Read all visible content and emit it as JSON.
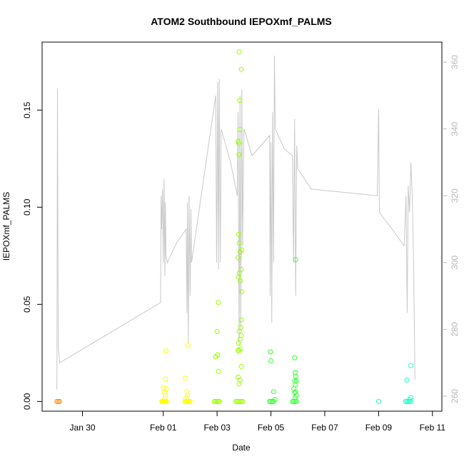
{
  "chart_data": {
    "type": "scatter",
    "title": "ATOM2 Southbound IEPOXmf_PALMS",
    "xlabel": "Date",
    "ylabel": "IEPOXmf_PALMS",
    "x_unit": "day of February 2017 (negative = late January)",
    "xlim": [
      -3.5,
      11.35
    ],
    "ylim": [
      -0.005,
      0.185
    ],
    "x_ticks": [
      {
        "value": -2,
        "label": "Jan 30"
      },
      {
        "value": 1,
        "label": "Feb 01"
      },
      {
        "value": 3,
        "label": "Feb 03"
      },
      {
        "value": 5,
        "label": "Feb 05"
      },
      {
        "value": 7,
        "label": "Feb 07"
      },
      {
        "value": 9,
        "label": "Feb 09"
      },
      {
        "value": 11,
        "label": "Feb 11"
      }
    ],
    "y_ticks": [
      {
        "value": 0.0,
        "label": "0.00"
      },
      {
        "value": 0.05,
        "label": "0.05"
      },
      {
        "value": 0.1,
        "label": "0.10"
      },
      {
        "value": 0.15,
        "label": "0.15"
      }
    ],
    "y2lim": [
      255.5,
      366
    ],
    "y2_ticks": [
      {
        "value": 260,
        "label": "260"
      },
      {
        "value": 280,
        "label": "280"
      },
      {
        "value": 300,
        "label": "300"
      },
      {
        "value": 320,
        "label": "320"
      },
      {
        "value": 340,
        "label": "340"
      },
      {
        "value": 360,
        "label": "360"
      }
    ],
    "grid": false,
    "legend": "none",
    "secondary_series": {
      "color": "#c8c8c8",
      "points": [
        [
          -2.95,
          262
        ],
        [
          -2.93,
          352
        ],
        [
          -2.9,
          275
        ],
        [
          -2.85,
          270
        ],
        [
          0.9,
          288
        ],
        [
          0.92,
          320
        ],
        [
          0.94,
          310
        ],
        [
          0.97,
          322
        ],
        [
          1.0,
          300
        ],
        [
          1.03,
          325
        ],
        [
          1.06,
          296
        ],
        [
          1.08,
          318
        ],
        [
          1.1,
          302
        ],
        [
          1.15,
          300
        ],
        [
          1.5,
          306
        ],
        [
          1.85,
          310
        ],
        [
          1.88,
          285
        ],
        [
          1.9,
          318
        ],
        [
          1.93,
          276
        ],
        [
          1.96,
          320
        ],
        [
          2.0,
          290
        ],
        [
          2.03,
          316
        ],
        [
          2.05,
          300
        ],
        [
          2.95,
          350
        ],
        [
          2.98,
          300
        ],
        [
          3.02,
          354
        ],
        [
          3.05,
          298
        ],
        [
          3.08,
          355
        ],
        [
          3.12,
          300
        ],
        [
          3.15,
          340
        ],
        [
          3.5,
          330
        ],
        [
          3.75,
          320
        ],
        [
          3.78,
          345
        ],
        [
          3.82,
          275
        ],
        [
          3.85,
          350
        ],
        [
          3.88,
          280
        ],
        [
          3.92,
          352
        ],
        [
          3.95,
          305
        ],
        [
          4.0,
          340
        ],
        [
          4.3,
          332
        ],
        [
          4.95,
          338
        ],
        [
          4.97,
          290
        ],
        [
          5.0,
          336
        ],
        [
          5.03,
          282
        ],
        [
          5.06,
          345
        ],
        [
          5.1,
          300
        ],
        [
          5.13,
          362
        ],
        [
          5.16,
          340
        ],
        [
          5.5,
          334
        ],
        [
          5.8,
          332
        ],
        [
          5.84,
          300
        ],
        [
          5.88,
          343
        ],
        [
          5.92,
          290
        ],
        [
          5.96,
          335
        ],
        [
          6.0,
          328
        ],
        [
          6.5,
          322
        ],
        [
          8.95,
          320
        ],
        [
          9.0,
          346
        ],
        [
          9.03,
          315
        ],
        [
          9.5,
          310
        ],
        [
          9.95,
          305
        ],
        [
          10.02,
          320
        ],
        [
          10.06,
          285
        ],
        [
          10.1,
          323
        ],
        [
          10.15,
          315
        ],
        [
          10.2,
          330
        ],
        [
          10.25,
          320
        ],
        [
          10.3,
          300
        ],
        [
          10.35,
          265
        ]
      ]
    },
    "series": [
      {
        "color": "#ff8c1a",
        "points": [
          [
            -2.95,
            0.0
          ],
          [
            -2.9,
            0.0
          ],
          [
            -2.85,
            0.0
          ]
        ]
      },
      {
        "color": "#ffff00",
        "points": [
          [
            0.95,
            0.0
          ],
          [
            0.98,
            0.0
          ],
          [
            1.0,
            0.0
          ],
          [
            1.02,
            0.0
          ],
          [
            1.05,
            0.0
          ],
          [
            1.08,
            0.0
          ],
          [
            1.12,
            0.0
          ],
          [
            1.05,
            0.001
          ],
          [
            1.08,
            0.003
          ],
          [
            1.05,
            0.005
          ],
          [
            1.1,
            0.0065
          ],
          [
            1.0,
            0.007
          ],
          [
            1.08,
            0.0115
          ],
          [
            1.1,
            0.026
          ],
          [
            1.8,
            0.0
          ],
          [
            1.84,
            0.0
          ],
          [
            1.88,
            0.0
          ],
          [
            1.92,
            0.0
          ],
          [
            1.96,
            0.0
          ],
          [
            2.0,
            0.0
          ],
          [
            1.84,
            0.0015
          ],
          [
            1.9,
            0.003
          ],
          [
            1.88,
            0.005
          ],
          [
            1.82,
            0.012
          ],
          [
            1.92,
            0.029
          ]
        ]
      },
      {
        "color": "#99ff00",
        "points": [
          [
            2.9,
            0.0
          ],
          [
            2.95,
            0.0
          ],
          [
            3.0,
            0.0
          ],
          [
            3.05,
            0.0
          ],
          [
            3.08,
            0.0
          ],
          [
            3.05,
            0.0155
          ],
          [
            2.95,
            0.023
          ],
          [
            3.02,
            0.024
          ],
          [
            3.0,
            0.036
          ],
          [
            3.05,
            0.051
          ],
          [
            3.7,
            0.0
          ],
          [
            3.75,
            0.0
          ],
          [
            3.8,
            0.0
          ],
          [
            3.85,
            0.0
          ],
          [
            3.9,
            0.0
          ],
          [
            3.95,
            0.0
          ],
          [
            3.82,
            0.009
          ],
          [
            3.85,
            0.011
          ],
          [
            3.78,
            0.0125
          ],
          [
            3.9,
            0.018
          ],
          [
            3.82,
            0.026
          ],
          [
            3.86,
            0.027
          ],
          [
            3.78,
            0.0265
          ],
          [
            3.8,
            0.03
          ],
          [
            3.85,
            0.032
          ],
          [
            3.9,
            0.034
          ],
          [
            3.82,
            0.036
          ],
          [
            3.88,
            0.038
          ],
          [
            3.9,
            0.042
          ],
          [
            3.92,
            0.0565
          ],
          [
            3.86,
            0.062
          ],
          [
            3.8,
            0.064
          ],
          [
            3.82,
            0.066
          ],
          [
            3.9,
            0.068
          ],
          [
            3.78,
            0.074
          ],
          [
            3.86,
            0.077
          ],
          [
            3.92,
            0.078
          ],
          [
            3.82,
            0.0815
          ],
          [
            3.8,
            0.086
          ],
          [
            3.82,
            0.127
          ],
          [
            3.8,
            0.133
          ],
          [
            3.78,
            0.134
          ],
          [
            3.85,
            0.14
          ],
          [
            3.84,
            0.155
          ],
          [
            3.82,
            0.18
          ],
          [
            3.9,
            0.171
          ]
        ]
      },
      {
        "color": "#33ff33",
        "points": [
          [
            4.95,
            0.0
          ],
          [
            5.0,
            0.0
          ],
          [
            5.05,
            0.0
          ],
          [
            5.1,
            0.0
          ],
          [
            5.15,
            0.001
          ],
          [
            5.1,
            0.005
          ],
          [
            5.0,
            0.021
          ],
          [
            4.98,
            0.0255
          ],
          [
            5.8,
            0.0
          ],
          [
            5.85,
            0.0
          ],
          [
            5.9,
            0.0
          ],
          [
            5.95,
            0.0
          ],
          [
            5.9,
            0.002
          ],
          [
            5.95,
            0.003
          ],
          [
            5.88,
            0.0045
          ],
          [
            5.92,
            0.005
          ],
          [
            5.85,
            0.0065
          ],
          [
            5.9,
            0.0085
          ],
          [
            5.95,
            0.0105
          ],
          [
            5.88,
            0.0105
          ],
          [
            5.92,
            0.013
          ],
          [
            5.9,
            0.015
          ],
          [
            5.88,
            0.0225
          ],
          [
            5.92,
            0.073
          ]
        ]
      },
      {
        "color": "#1affc8",
        "points": [
          [
            9.0,
            0.0
          ],
          [
            10.0,
            0.0
          ],
          [
            10.05,
            0.0
          ],
          [
            10.1,
            0.0
          ],
          [
            10.15,
            0.0
          ],
          [
            10.2,
            0.0
          ],
          [
            10.15,
            0.001
          ],
          [
            10.2,
            0.002
          ],
          [
            10.05,
            0.011
          ],
          [
            10.2,
            0.0185
          ]
        ]
      }
    ]
  }
}
